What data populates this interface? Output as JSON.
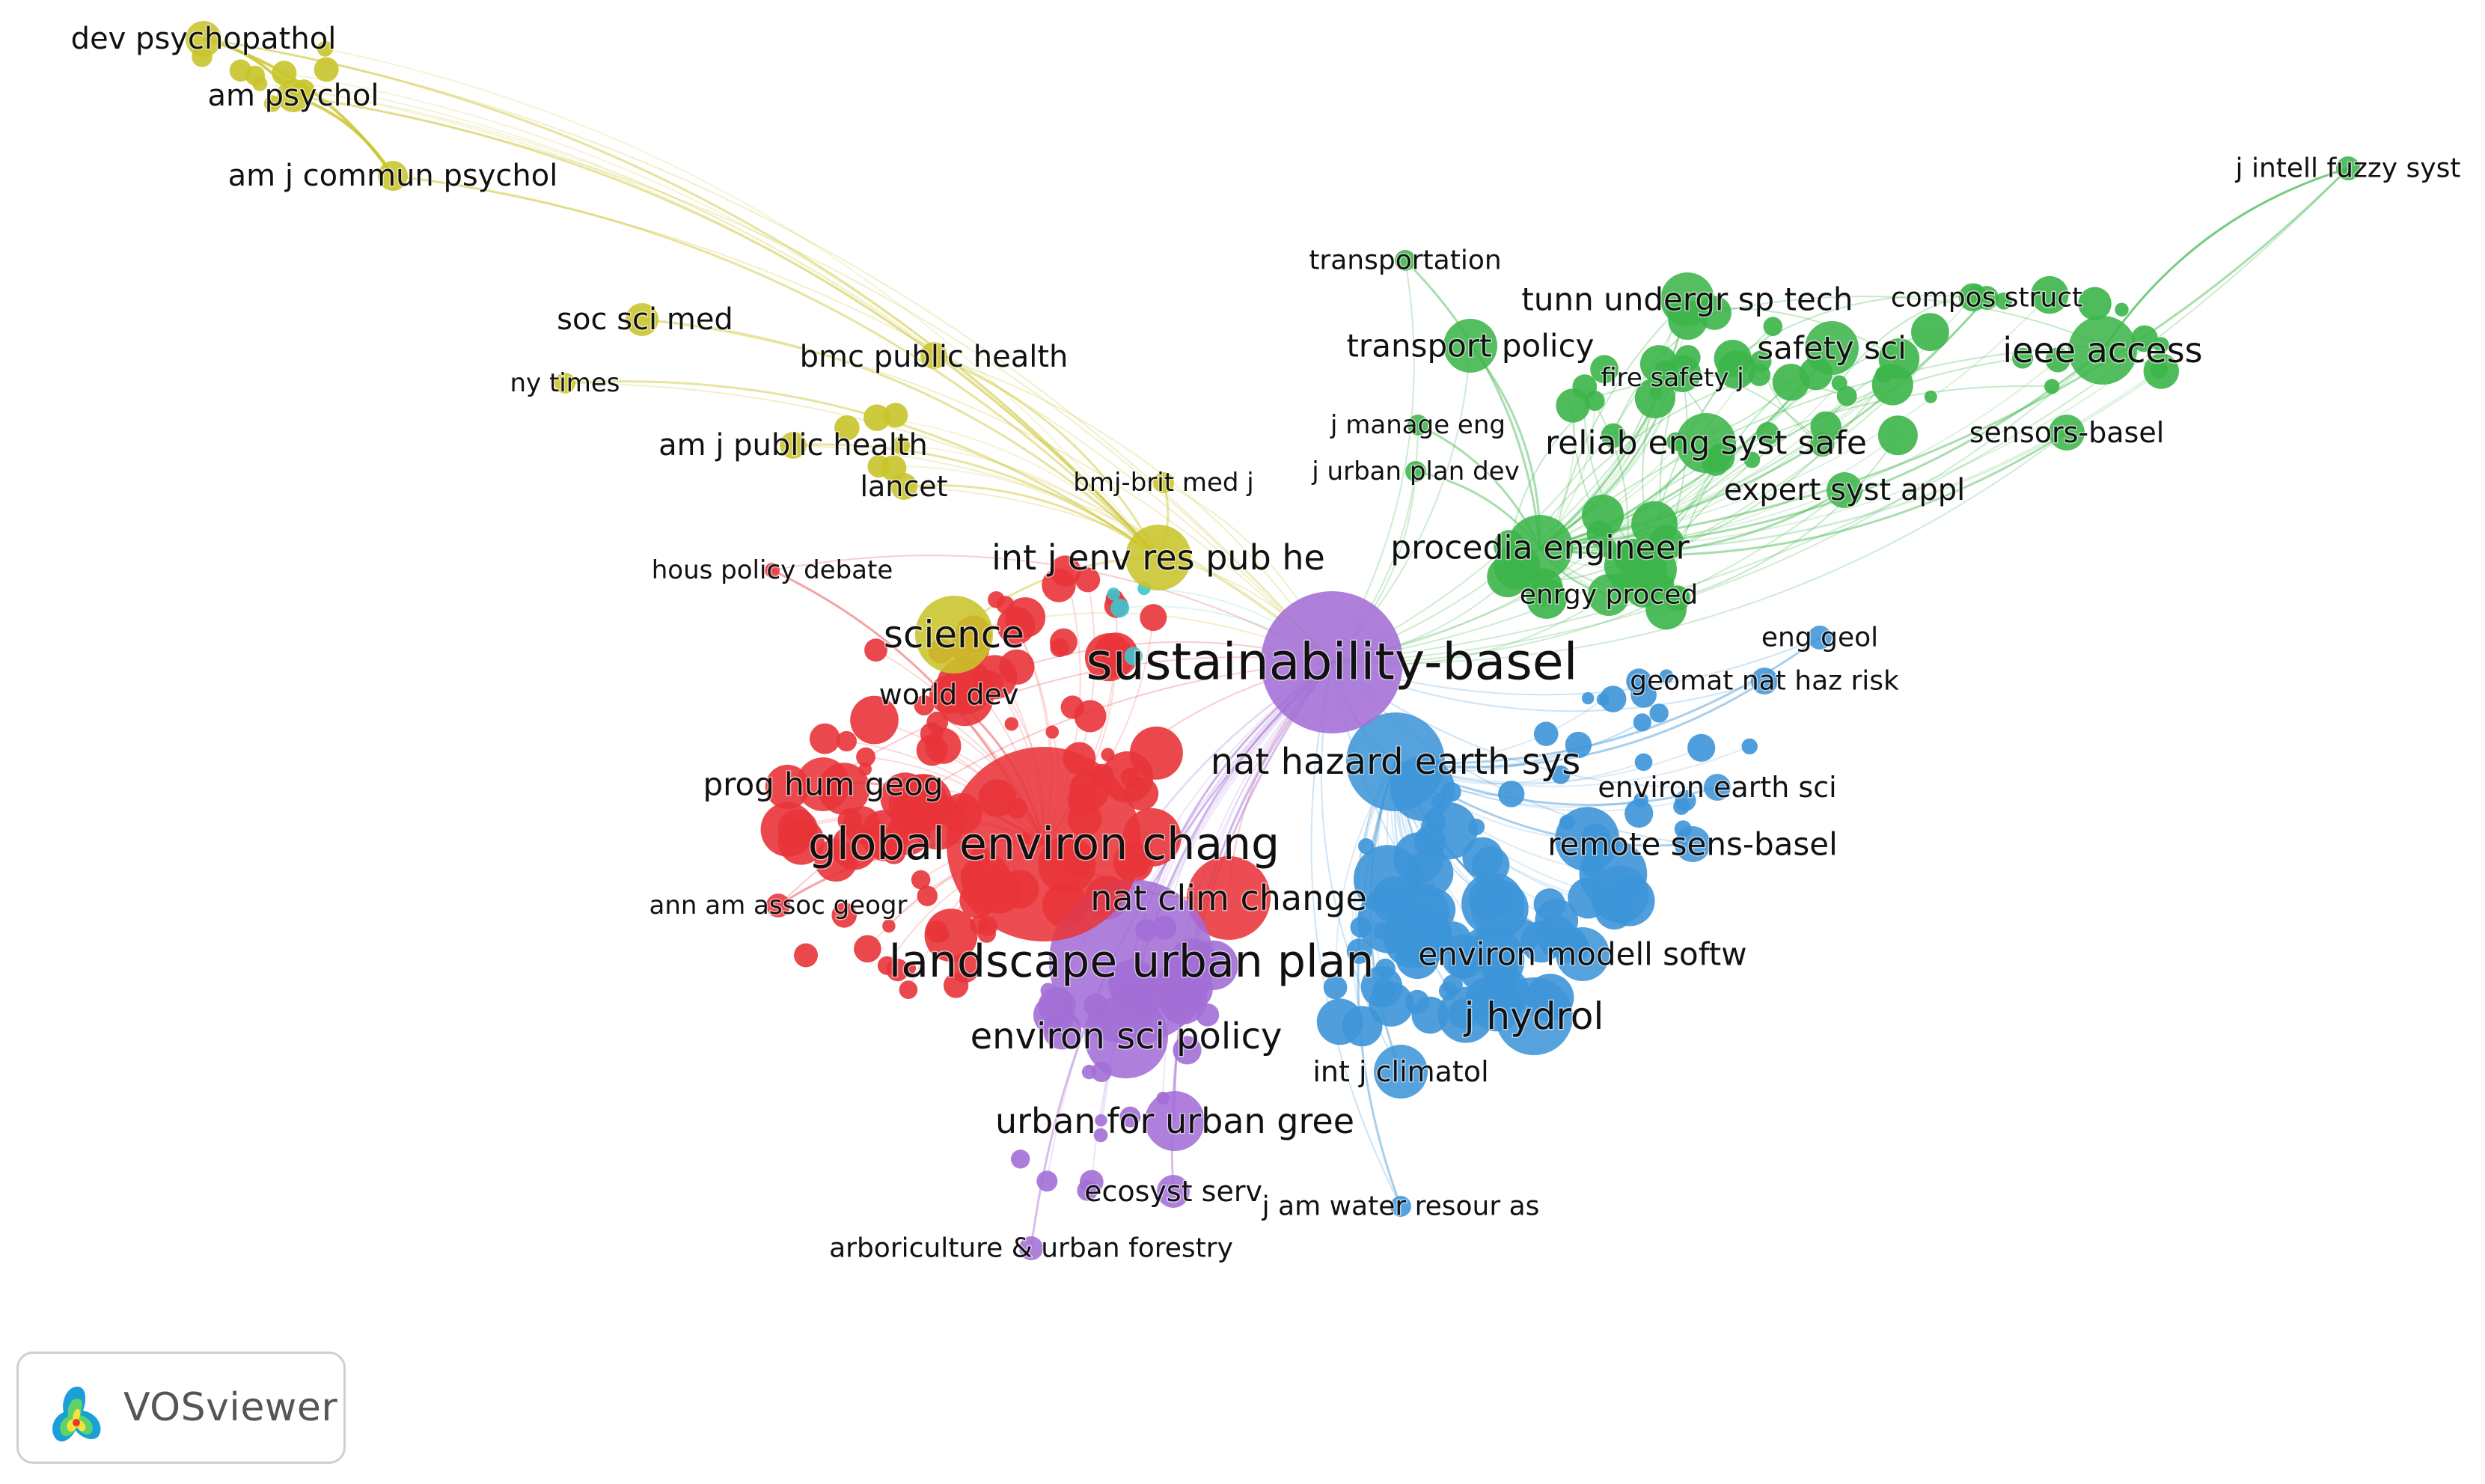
{
  "app": {
    "name": "VOSviewer"
  },
  "clusters": [
    {
      "id": "red",
      "color": "#e8343a"
    },
    {
      "id": "green",
      "color": "#3cb54a"
    },
    {
      "id": "blue",
      "color": "#3d95d8"
    },
    {
      "id": "yellow",
      "color": "#c9c42a"
    },
    {
      "id": "purple",
      "color": "#a36ed6"
    },
    {
      "id": "cyan",
      "color": "#3cc7cf"
    }
  ],
  "nodes": [
    {
      "id": "dev-psychopathol",
      "label": "dev psychopathol",
      "cluster": "yellow"
    },
    {
      "id": "am-psychol",
      "label": "am psychol",
      "cluster": "yellow"
    },
    {
      "id": "am-j-commun-psychol",
      "label": "am j commun psychol",
      "cluster": "yellow"
    },
    {
      "id": "soc-sci-med",
      "label": "soc sci med",
      "cluster": "yellow"
    },
    {
      "id": "ny-times",
      "label": "ny times",
      "cluster": "yellow"
    },
    {
      "id": "bmc-public-health",
      "label": "bmc public health",
      "cluster": "yellow"
    },
    {
      "id": "am-j-public-health",
      "label": "am j public health",
      "cluster": "yellow"
    },
    {
      "id": "lancet",
      "label": "lancet",
      "cluster": "yellow"
    },
    {
      "id": "bmj-brit-med-j",
      "label": "bmj-brit med j",
      "cluster": "yellow"
    },
    {
      "id": "int-j-env-res-pub-he",
      "label": "int j env res pub he",
      "cluster": "yellow"
    },
    {
      "id": "science",
      "label": "science",
      "cluster": "yellow"
    },
    {
      "id": "hous-policy-debate",
      "label": "hous policy debate",
      "cluster": "red"
    },
    {
      "id": "world-dev",
      "label": "world dev",
      "cluster": "red"
    },
    {
      "id": "prog-hum-geog",
      "label": "prog hum geog",
      "cluster": "red"
    },
    {
      "id": "global-environ-chang",
      "label": "global environ chang",
      "cluster": "red"
    },
    {
      "id": "ann-am-assoc-geogr",
      "label": "ann am assoc geogr",
      "cluster": "red"
    },
    {
      "id": "nat-clim-change",
      "label": "nat clim change",
      "cluster": "red"
    },
    {
      "id": "landscape-urban-plan",
      "label": "landscape urban plan",
      "cluster": "purple"
    },
    {
      "id": "environ-sci-policy",
      "label": "environ sci policy",
      "cluster": "purple"
    },
    {
      "id": "urban-for-urban-gree",
      "label": "urban for urban gree",
      "cluster": "purple"
    },
    {
      "id": "ecosyst-serv",
      "label": "ecosyst serv",
      "cluster": "purple"
    },
    {
      "id": "arboriculture-urban-forestry",
      "label": "arboriculture & urban forestry",
      "cluster": "purple"
    },
    {
      "id": "sustainability-basel",
      "label": "sustainability-basel",
      "cluster": "purple"
    },
    {
      "id": "nat-hazard-earth-sys",
      "label": "nat hazard earth sys",
      "cluster": "blue"
    },
    {
      "id": "environ-earth-sci",
      "label": "environ earth sci",
      "cluster": "blue"
    },
    {
      "id": "remote-sens-basel",
      "label": "remote sens-basel",
      "cluster": "blue"
    },
    {
      "id": "environ-modell-softw",
      "label": "environ modell softw",
      "cluster": "blue"
    },
    {
      "id": "j-hydrol",
      "label": "j hydrol",
      "cluster": "blue"
    },
    {
      "id": "int-j-climatol",
      "label": "int j climatol",
      "cluster": "blue"
    },
    {
      "id": "j-am-water-resour-as",
      "label": "j am water resour as",
      "cluster": "blue"
    },
    {
      "id": "eng-geol",
      "label": "eng geol",
      "cluster": "blue"
    },
    {
      "id": "geomat-nat-haz-risk",
      "label": "geomat nat haz risk",
      "cluster": "blue"
    },
    {
      "id": "transportation",
      "label": "transportation",
      "cluster": "green"
    },
    {
      "id": "tunn-undergr-sp-tech",
      "label": "tunn undergr sp tech",
      "cluster": "green"
    },
    {
      "id": "compos-struct",
      "label": "compos struct",
      "cluster": "green"
    },
    {
      "id": "transport-policy",
      "label": "transport policy",
      "cluster": "green"
    },
    {
      "id": "safety-sci",
      "label": "safety sci",
      "cluster": "green"
    },
    {
      "id": "ieee-access",
      "label": "ieee access",
      "cluster": "green"
    },
    {
      "id": "j-intell-fuzzy-syst",
      "label": "j intell fuzzy syst",
      "cluster": "green"
    },
    {
      "id": "fire-safety-j",
      "label": "fire safety j",
      "cluster": "green"
    },
    {
      "id": "j-manage-eng",
      "label": "j manage eng",
      "cluster": "green"
    },
    {
      "id": "reliab-eng-syst-safe",
      "label": "reliab eng syst safe",
      "cluster": "green"
    },
    {
      "id": "sensors-basel",
      "label": "sensors-basel",
      "cluster": "green"
    },
    {
      "id": "j-urban-plan-dev",
      "label": "j urban plan dev",
      "cluster": "green"
    },
    {
      "id": "expert-syst-appl",
      "label": "expert syst appl",
      "cluster": "green"
    },
    {
      "id": "procedia-engineer",
      "label": "procedia engineer",
      "cluster": "green"
    },
    {
      "id": "enrgy-proced",
      "label": "enrgy proced",
      "cluster": "green"
    }
  ]
}
